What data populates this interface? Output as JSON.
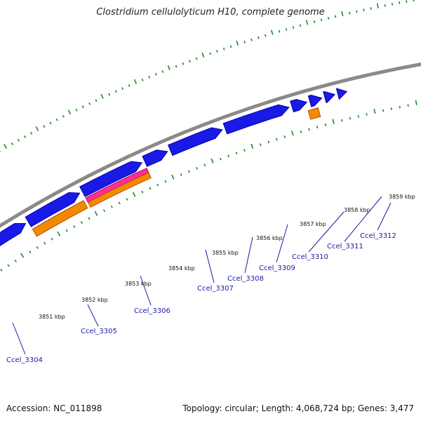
{
  "title": "Clostridium cellulolyticum H10, complete genome",
  "footer": {
    "accession": "Accession: NC_011898",
    "summary": "Topology: circular; Length: 4,068,724 bp; Genes: 3,477"
  },
  "colors": {
    "backbone": "#8a8a8a",
    "cds": "#1a1ae6",
    "rrna": "#ff2d9a",
    "trna": "#f28a00",
    "ticks": "#1e8a1e",
    "labels": "#1a1aa8"
  },
  "ruler": {
    "labels": [
      "3851 kbp",
      "3852 kbp",
      "3853 kbp",
      "3854 kbp",
      "3855 kbp",
      "3856 kbp",
      "3857 kbp",
      "3858 kbp",
      "3859 kbp"
    ]
  },
  "gene_labels": [
    "Ccel_3304",
    "Ccel_3305",
    "Ccel_3306",
    "Ccel_3307",
    "Ccel_3308",
    "Ccel_3309",
    "Ccel_3310",
    "Ccel_3311",
    "Ccel_3312"
  ]
}
